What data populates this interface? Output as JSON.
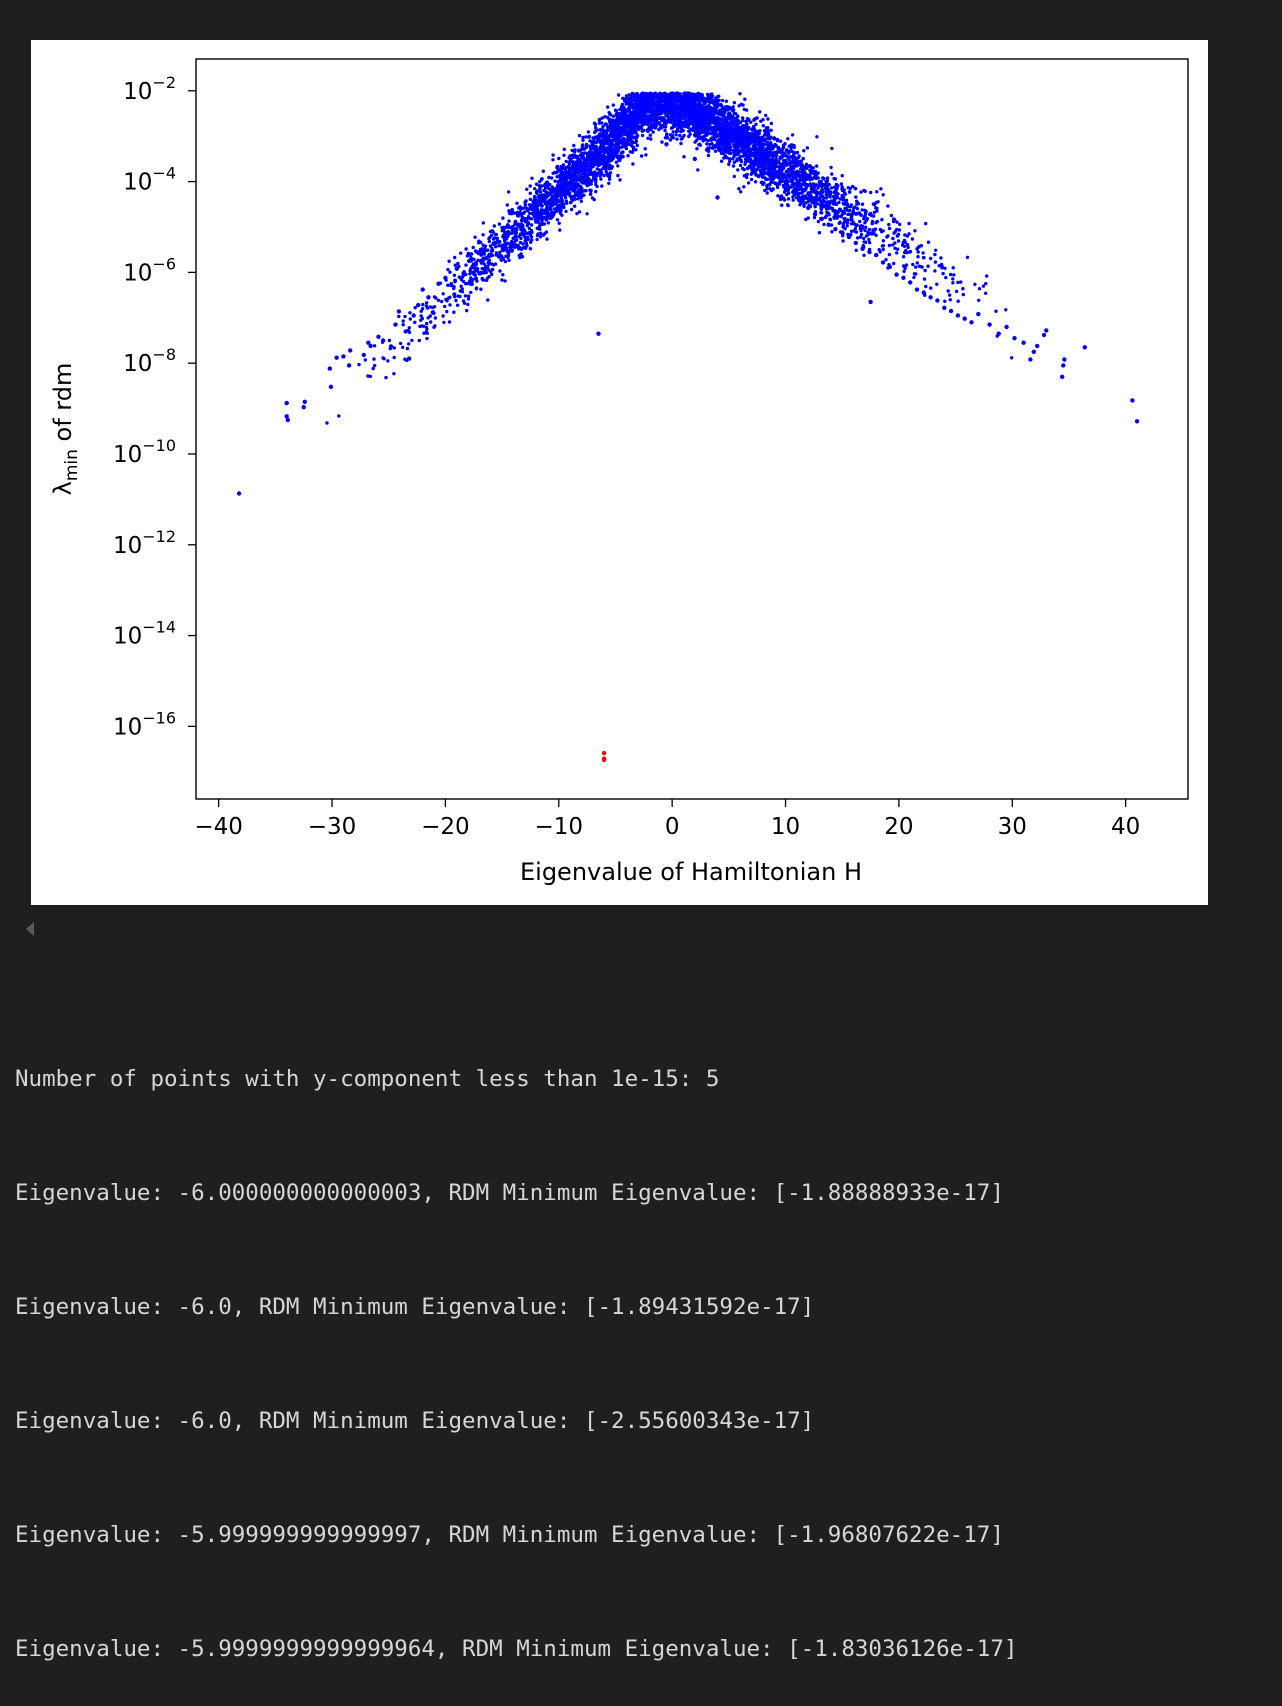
{
  "chart_data": {
    "type": "scatter",
    "title": "",
    "xlabel": "Eigenvalue of Hamiltonian H",
    "ylabel_main": "λ",
    "ylabel_sub": "min",
    "ylabel_rest": " of rdm",
    "xlim": [
      -42,
      45.5
    ],
    "ylim_log10": [
      -17.6,
      -1.3
    ],
    "yscale": "log",
    "x_ticks": [
      -40,
      -30,
      -20,
      -10,
      0,
      10,
      20,
      30,
      40
    ],
    "x_tick_labels": [
      "−40",
      "−30",
      "−20",
      "−10",
      "0",
      "10",
      "20",
      "30",
      "40"
    ],
    "y_tick_exponents": [
      -2,
      -4,
      -6,
      -8,
      -10,
      -12,
      -14,
      -16
    ],
    "y_tick_exponent_labels": [
      "−2",
      "−4",
      "−6",
      "−8",
      "−10",
      "−12",
      "−14",
      "−16"
    ],
    "y_tick_base": "10",
    "grid": false,
    "legend": "none",
    "series": [
      {
        "color": "#0000ff",
        "description_points": "dense cloud of eigenvalue pairs; envelope shown by sample points",
        "points": [
          [
            -38.2,
            -10.87
          ],
          [
            -34.0,
            -9.17
          ],
          [
            -34.0,
            -8.88
          ],
          [
            -33.9,
            -9.25
          ],
          [
            -32.5,
            -8.97
          ],
          [
            -32.4,
            -8.85
          ],
          [
            -30.1,
            -8.52
          ],
          [
            -30.2,
            -8.12
          ],
          [
            -29.6,
            -7.88
          ],
          [
            -29.0,
            -7.85
          ],
          [
            -28.4,
            -7.72
          ],
          [
            -28.5,
            -8.05
          ],
          [
            -27.2,
            -7.82
          ],
          [
            -26.8,
            -7.55
          ],
          [
            -26.6,
            -7.62
          ],
          [
            -25.9,
            -7.42
          ],
          [
            -25.5,
            -7.5
          ],
          [
            -24.8,
            -7.63
          ],
          [
            -24.4,
            -7.15
          ],
          [
            -24.1,
            -6.86
          ],
          [
            -23.5,
            -7.3
          ],
          [
            -23.2,
            -7.9
          ],
          [
            -22.8,
            -6.95
          ],
          [
            -22.4,
            -6.72
          ],
          [
            -22.0,
            -6.38
          ],
          [
            -21.5,
            -6.55
          ],
          [
            -21.1,
            -6.88
          ],
          [
            -20.6,
            -6.25
          ],
          [
            -20.0,
            -6.12
          ],
          [
            -19.5,
            -6.28
          ],
          [
            -19.0,
            -5.92
          ],
          [
            -18.4,
            -6.02
          ],
          [
            -17.9,
            -5.75
          ],
          [
            -17.3,
            -5.82
          ],
          [
            -16.8,
            -5.55
          ],
          [
            -16.2,
            -5.65
          ],
          [
            -15.6,
            -5.35
          ],
          [
            -15.0,
            -5.42
          ],
          [
            -14.5,
            -5.18
          ],
          [
            -13.8,
            -5.12
          ],
          [
            -13.3,
            -5.48
          ],
          [
            -12.7,
            -4.92
          ],
          [
            -12.2,
            -4.72
          ],
          [
            -11.5,
            -4.82
          ],
          [
            -11.0,
            -4.48
          ],
          [
            -10.4,
            -4.22
          ],
          [
            -9.8,
            -3.95
          ],
          [
            -9.2,
            -4.05
          ],
          [
            -8.6,
            -3.8
          ],
          [
            -8.0,
            -3.62
          ],
          [
            -7.4,
            -3.42
          ],
          [
            -6.9,
            -3.55
          ],
          [
            -6.2,
            -3.28
          ],
          [
            -5.6,
            -3.08
          ],
          [
            -5.0,
            -3.22
          ],
          [
            -4.4,
            -2.95
          ],
          [
            -3.8,
            -2.78
          ],
          [
            -3.2,
            -2.62
          ],
          [
            -2.6,
            -2.5
          ],
          [
            -2.0,
            -2.35
          ],
          [
            -1.4,
            -2.32
          ],
          [
            -0.8,
            -2.2
          ],
          [
            -0.2,
            -2.15
          ],
          [
            0.5,
            -2.12
          ],
          [
            1.2,
            -2.18
          ],
          [
            1.8,
            -2.28
          ],
          [
            2.4,
            -2.4
          ],
          [
            3.0,
            -2.52
          ],
          [
            3.6,
            -2.62
          ],
          [
            4.2,
            -2.75
          ],
          [
            4.8,
            -2.85
          ],
          [
            5.4,
            -2.98
          ],
          [
            6.0,
            -3.05
          ],
          [
            6.6,
            -3.15
          ],
          [
            7.2,
            -3.22
          ],
          [
            7.8,
            -3.35
          ],
          [
            8.4,
            -3.52
          ],
          [
            9.0,
            -3.72
          ],
          [
            9.6,
            -3.95
          ],
          [
            10.2,
            -4.12
          ],
          [
            10.8,
            -4.28
          ],
          [
            11.4,
            -4.45
          ],
          [
            12.0,
            -4.58
          ],
          [
            12.6,
            -4.72
          ],
          [
            13.2,
            -4.82
          ],
          [
            13.8,
            -4.95
          ],
          [
            14.4,
            -5.05
          ],
          [
            15.0,
            -5.12
          ],
          [
            15.6,
            -5.22
          ],
          [
            16.2,
            -5.35
          ],
          [
            16.8,
            -5.48
          ],
          [
            17.4,
            -5.55
          ],
          [
            18.0,
            -5.62
          ],
          [
            18.6,
            -5.78
          ],
          [
            19.2,
            -5.88
          ],
          [
            19.8,
            -6.05
          ],
          [
            20.4,
            -6.12
          ],
          [
            21.0,
            -6.22
          ],
          [
            21.6,
            -6.38
          ],
          [
            22.2,
            -6.45
          ],
          [
            22.8,
            -6.55
          ],
          [
            23.4,
            -6.62
          ],
          [
            24.0,
            -6.78
          ],
          [
            24.6,
            -6.85
          ],
          [
            25.2,
            -6.95
          ],
          [
            25.8,
            -7.02
          ],
          [
            26.4,
            -7.1
          ],
          [
            27.0,
            -6.92
          ],
          [
            28.0,
            -7.15
          ],
          [
            28.8,
            -7.35
          ],
          [
            29.5,
            -7.2
          ],
          [
            30.2,
            -7.45
          ],
          [
            31.0,
            -7.55
          ],
          [
            31.6,
            -7.92
          ],
          [
            31.9,
            -7.75
          ],
          [
            32.2,
            -7.62
          ],
          [
            32.8,
            -7.38
          ],
          [
            33.0,
            -7.28
          ],
          [
            34.4,
            -8.3
          ],
          [
            34.5,
            -8.05
          ],
          [
            34.6,
            -7.92
          ],
          [
            36.4,
            -7.65
          ],
          [
            40.6,
            -8.82
          ],
          [
            41.0,
            -9.28
          ],
          [
            -6.5,
            -7.35
          ],
          [
            4.0,
            -4.35
          ],
          [
            9.0,
            -3.05
          ],
          [
            -0.5,
            -3.18
          ],
          [
            2.0,
            -3.5
          ],
          [
            17.5,
            -6.65
          ]
        ]
      },
      {
        "color": "#ff0000",
        "points": [
          [
            -6.0,
            -16.72
          ],
          [
            -6.0,
            -16.73
          ],
          [
            -6.0,
            -16.59
          ],
          [
            -6.0,
            -16.71
          ],
          [
            -6.0,
            -16.74
          ]
        ]
      }
    ]
  },
  "output": {
    "lines": [
      "Number of points with y-component less than 1e-15: 5",
      "Eigenvalue: -6.000000000000003, RDM Minimum Eigenvalue: [-1.88888933e-17]",
      "Eigenvalue: -6.0, RDM Minimum Eigenvalue: [-1.89431592e-17]",
      "Eigenvalue: -6.0, RDM Minimum Eigenvalue: [-2.55600343e-17]",
      "Eigenvalue: -5.999999999999997, RDM Minimum Eigenvalue: [-1.96807622e-17]",
      "Eigenvalue: -5.9999999999999964, RDM Minimum Eigenvalue: [-1.83036126e-17]"
    ]
  }
}
